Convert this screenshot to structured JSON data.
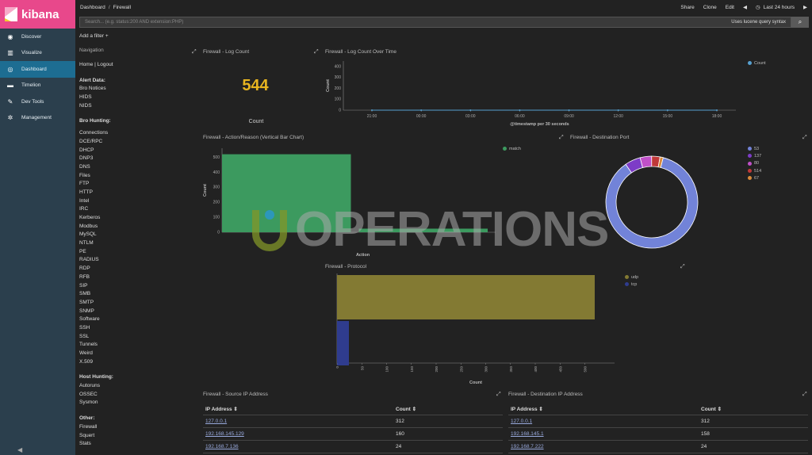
{
  "app": {
    "brand": "kibana"
  },
  "sidebar": {
    "items": [
      {
        "label": "Discover",
        "icon": "compass-icon"
      },
      {
        "label": "Visualize",
        "icon": "bar-chart-icon"
      },
      {
        "label": "Dashboard",
        "icon": "dashboard-icon",
        "active": true
      },
      {
        "label": "Timelion",
        "icon": "timelion-icon"
      },
      {
        "label": "Dev Tools",
        "icon": "wrench-icon"
      },
      {
        "label": "Management",
        "icon": "gear-icon"
      }
    ]
  },
  "header": {
    "breadcrumb": [
      "Dashboard",
      "Firewall"
    ],
    "actions": {
      "share": "Share",
      "clone": "Clone",
      "edit": "Edit",
      "time": "Last 24 hours"
    }
  },
  "search": {
    "placeholder": "Search... (e.g. status:200 AND extension:PHP)",
    "syntax": "Uses lucene query syntax"
  },
  "filter": {
    "add_label": "Add a filter +"
  },
  "nav_panel": {
    "title": "Navigation",
    "home": "Home | Logout",
    "sections": [
      {
        "title": "Alert Data:",
        "items": [
          "Bro Notices",
          "HIDS",
          "NIDS"
        ]
      },
      {
        "title": "Bro Hunting:",
        "items": [
          "Connections",
          "DCE/RPC",
          "DHCP",
          "DNP3",
          "DNS",
          "Files",
          "FTP",
          "HTTP",
          "Intel",
          "IRC",
          "Kerberos",
          "Modbus",
          "MySQL",
          "NTLM",
          "PE",
          "RADIUS",
          "RDP",
          "RFB",
          "SIP",
          "SMB",
          "SMTP",
          "SNMP",
          "Software",
          "SSH",
          "SSL",
          "Tunnels",
          "Weird",
          "X.509"
        ]
      },
      {
        "title": "Host Hunting:",
        "items": [
          "Autoruns",
          "OSSEC",
          "Sysmon"
        ]
      },
      {
        "title": "Other:",
        "items": [
          "Firewall",
          "Squert",
          "Stats"
        ]
      }
    ]
  },
  "panels": {
    "log_count": {
      "title": "Firewall - Log Count",
      "value": "544",
      "label": "Count"
    },
    "log_over_time": {
      "title": "Firewall - Log Count Over Time"
    },
    "action_reason": {
      "title": "Firewall - Action/Reason (Vertical Bar Chart)"
    },
    "destination_port": {
      "title": "Firewall - Destination Port"
    },
    "protocol": {
      "title": "Firewall - Protocol"
    },
    "source_ip": {
      "title": "Firewall - Source IP Address",
      "columns": [
        "IP Address ⇕",
        "Count ⇕"
      ],
      "rows": [
        [
          "127.0.0.1",
          "312"
        ],
        [
          "192.168.145.129",
          "160"
        ],
        [
          "192.168.7.136",
          "24"
        ]
      ]
    },
    "dest_ip": {
      "title": "Firewall - Destination IP Address",
      "columns": [
        "IP Address ⇕",
        "Count ⇕"
      ],
      "rows": [
        [
          "127.0.0.1",
          "312"
        ],
        [
          "192.168.145.1",
          "158"
        ],
        [
          "192.168.7.222",
          "24"
        ]
      ]
    }
  },
  "watermark": {
    "text": "OPERATIONS"
  },
  "chart_data": [
    {
      "type": "line",
      "title": "Firewall - Log Count Over Time",
      "xlabel": "@timestamp per 30 seconds",
      "ylabel": "Count",
      "x": [
        "21:00",
        "00:00",
        "03:00",
        "06:00",
        "09:00",
        "12:00",
        "15:00",
        "18:00"
      ],
      "yticks": [
        0,
        100,
        200,
        300,
        400
      ],
      "ylim": [
        0,
        450
      ],
      "series": [
        {
          "name": "Count",
          "values": [
            0,
            0,
            0,
            0,
            0,
            0,
            0,
            0
          ]
        }
      ],
      "color": "#57a0d0",
      "legend": "top-right"
    },
    {
      "type": "bar",
      "title": "Firewall - Action/Reason (Vertical Bar Chart)",
      "xlabel": "Action",
      "ylabel": "Count",
      "categories": [
        "",
        ""
      ],
      "yticks": [
        0,
        100,
        200,
        300,
        400,
        500
      ],
      "ylim": [
        0,
        560
      ],
      "series": [
        {
          "name": "match",
          "values": [
            520,
            24
          ]
        }
      ],
      "color": "#3c9a5f",
      "legend": "top-right"
    },
    {
      "type": "pie",
      "title": "Firewall - Destination Port",
      "donut": true,
      "labels": [
        "53",
        "137",
        "80",
        "514",
        "67"
      ],
      "values": [
        470,
        30,
        22,
        16,
        6
      ],
      "colors": [
        "#7283d8",
        "#7d3cc7",
        "#c050c8",
        "#c03838",
        "#d98a3a"
      ],
      "legend": "right"
    },
    {
      "type": "bar",
      "orientation": "horizontal",
      "title": "Firewall - Protocol",
      "xlabel": "Count",
      "categories": [
        "udp",
        "tcp"
      ],
      "series": [
        {
          "name": "Count",
          "values": [
            520,
            24
          ]
        }
      ],
      "xlim": [
        0,
        560
      ],
      "xticks": [
        0,
        50,
        100,
        150,
        200,
        250,
        300,
        350,
        400,
        450,
        500
      ],
      "colors": [
        "#837a33",
        "#2f3c8e"
      ],
      "legend": "top-right"
    }
  ]
}
